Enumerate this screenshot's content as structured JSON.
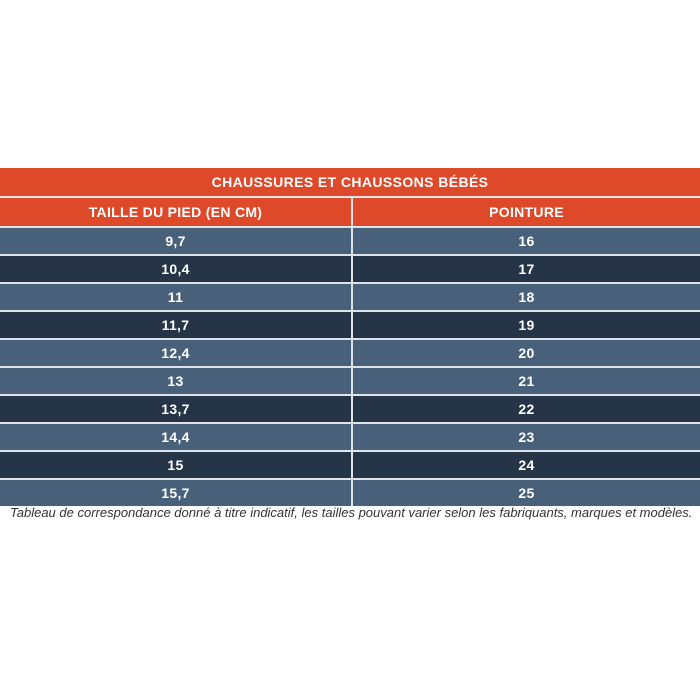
{
  "table": {
    "title": "CHAUSSURES ET CHAUSSONS BÉBÉS",
    "columns": [
      "TAILLE DU PIED (EN CM)",
      "POINTURE"
    ],
    "rows": [
      {
        "cm": "9,7",
        "pointure": "16"
      },
      {
        "cm": "10,4",
        "pointure": "17"
      },
      {
        "cm": "11",
        "pointure": "18"
      },
      {
        "cm": "11,7",
        "pointure": "19"
      },
      {
        "cm": "12,4",
        "pointure": "20"
      },
      {
        "cm": "13",
        "pointure": "21"
      },
      {
        "cm": "13,7",
        "pointure": "22"
      },
      {
        "cm": "14,4",
        "pointure": "23"
      },
      {
        "cm": "15",
        "pointure": "24"
      },
      {
        "cm": "15,7",
        "pointure": "25"
      }
    ]
  },
  "footer": {
    "note": "Tableau de correspondance donné à titre indicatif, les tailles pouvant varier selon les fabriquants, marques et modèles."
  },
  "colors": {
    "header_bg": "#de4a29",
    "row_light": "#48607a",
    "row_dark": "#263447",
    "separator": "#dce4ea",
    "table_text": "#ffffff",
    "note_text": "#333333"
  },
  "chart_data": {
    "type": "table",
    "title": "CHAUSSURES ET CHAUSSONS BÉBÉS",
    "columns": [
      "TAILLE DU PIED (EN CM)",
      "POINTURE"
    ],
    "rows": [
      [
        "9,7",
        "16"
      ],
      [
        "10,4",
        "17"
      ],
      [
        "11",
        "18"
      ],
      [
        "11,7",
        "19"
      ],
      [
        "12,4",
        "20"
      ],
      [
        "13",
        "21"
      ],
      [
        "13,7",
        "22"
      ],
      [
        "14,4",
        "23"
      ],
      [
        "15",
        "24"
      ],
      [
        "15,7",
        "25"
      ]
    ],
    "note": "Tableau de correspondance donné à titre indicatif, les tailles pouvant varier selon les fabriquants, marques et modèles."
  }
}
